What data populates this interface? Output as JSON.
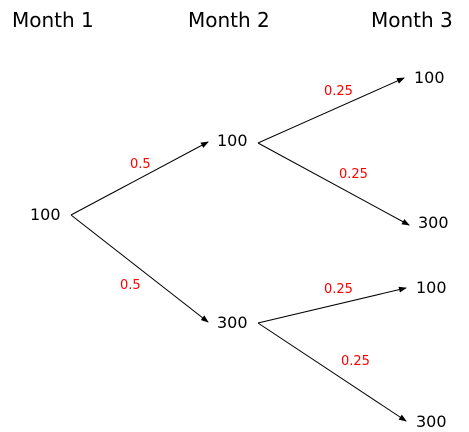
{
  "headers": [
    "Month 1",
    "Month 2",
    "Month 3"
  ],
  "nodes": {
    "root": "100",
    "m2_top": "100",
    "m2_bottom": "300",
    "m3_1": "100",
    "m3_2": "300",
    "m3_3": "100",
    "m3_4": "300"
  },
  "probabilities": {
    "root_to_m2_top": "0.5",
    "root_to_m2_bottom": "0.5",
    "m2_top_to_m3_1": "0.25",
    "m2_top_to_m3_2": "0.25",
    "m2_bottom_to_m3_3": "0.25",
    "m2_bottom_to_m3_4": "0.25"
  },
  "colors": {
    "edge": "#000000",
    "probability": "#ff0000",
    "text": "#000000"
  }
}
